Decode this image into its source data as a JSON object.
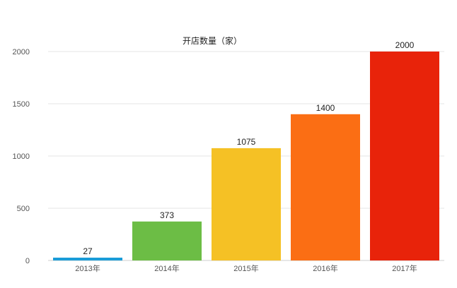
{
  "chart_data": {
    "type": "bar",
    "title": "开店数量（家）",
    "xlabel": "",
    "ylabel": "",
    "categories": [
      "2013年",
      "2014年",
      "2015年",
      "2016年",
      "2017年"
    ],
    "values": [
      27,
      373,
      1075,
      1400,
      2000
    ],
    "data_labels": [
      "27",
      "373",
      "1075",
      "1400",
      "2000"
    ],
    "bar_colors": [
      "#1a9cd8",
      "#6cbd45",
      "#f5c125",
      "#fb6e14",
      "#e8230a"
    ],
    "ylim": [
      0,
      2000
    ],
    "yticks": [
      0,
      500,
      1000,
      1500,
      2000
    ],
    "ytick_labels": [
      "0",
      "500",
      "1000",
      "1500",
      "2000"
    ],
    "grid": true,
    "legend": "none"
  }
}
